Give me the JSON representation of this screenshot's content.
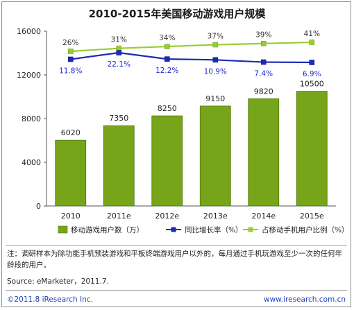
{
  "title": "2010-2015年美国移动游戏用户规模",
  "chart_data": {
    "type": "bar",
    "categories": [
      "2010",
      "2011e",
      "2012e",
      "2013e",
      "2014e",
      "2015e"
    ],
    "series": [
      {
        "name": "移动游戏用户数（万）",
        "type": "bar",
        "values": [
          6020,
          7350,
          8250,
          9150,
          9820,
          10500
        ],
        "labels": [
          "6020",
          "7350",
          "8250",
          "9150",
          "9820",
          "10500"
        ],
        "color": "#77a51a"
      },
      {
        "name": "同比增长率（%）",
        "type": "line",
        "values": [
          11.8,
          22.1,
          12.2,
          10.9,
          7.4,
          6.9
        ],
        "labels": [
          "11.8%",
          "22.1%",
          "12.2%",
          "10.9%",
          "7.4%",
          "6.9%"
        ],
        "color": "#1a2bb8"
      },
      {
        "name": "占移动手机用户比例（%）",
        "type": "line",
        "values": [
          26,
          31,
          34,
          37,
          39,
          41
        ],
        "labels": [
          "26%",
          "31%",
          "34%",
          "37%",
          "39%",
          "41%"
        ],
        "color": "#9acd32"
      }
    ],
    "y_ticks": [
      "0",
      "4000",
      "8000",
      "12000",
      "16000"
    ],
    "ylim": [
      0,
      16000
    ],
    "grid": false,
    "legend_position": "bottom"
  },
  "footnote": "注：调研样本为除功能手机预装游戏和平板终端游戏用户以外的，每月通过手机玩游戏至少一次的任何年龄段的用户。",
  "source": "Source: eMarketer，2011.7.",
  "copyright": "©2011.8 iResearch Inc.",
  "website": "www.iresearch.com.cn"
}
